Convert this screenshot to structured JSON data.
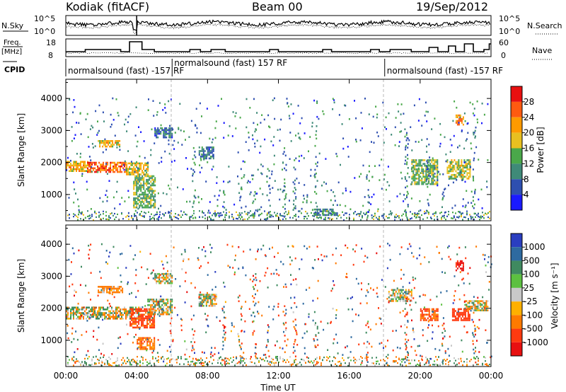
{
  "header": {
    "title": "Kodiak (fitACF)",
    "beam": "Beam 00",
    "date": "19/Sep/2012"
  },
  "noise_panel": {
    "left_label": "N.Sky",
    "right_label": "N.Search",
    "left_ticks": [
      "10^5",
      "10^0"
    ],
    "right_ticks": [
      "10^5",
      "10^0"
    ]
  },
  "freq_panel": {
    "left_label_line1": "Freq.",
    "left_label_line2": "[MHz]",
    "right_label": "Nave",
    "left_ticks": [
      "18",
      "8"
    ],
    "right_ticks": [
      "60",
      "0"
    ]
  },
  "cpid": {
    "label": "CPID",
    "segments": [
      {
        "text": "normalsound (fast) -157 RF",
        "start_hour": 0,
        "end_hour": 6
      },
      {
        "text": "normalsound (fast) 157 RF",
        "start_hour": 6,
        "end_hour": 18
      },
      {
        "text": "normalsound (fast) -157 RF",
        "start_hour": 18,
        "end_hour": 24
      }
    ]
  },
  "axes": {
    "ylabel": "Slant Range [km]",
    "yticks": [
      "1000",
      "2000",
      "3000",
      "4000"
    ],
    "xlabel": "Time UT",
    "xticks": [
      "00:00",
      "04:00",
      "08:00",
      "12:00",
      "16:00",
      "20:00",
      "00:00"
    ]
  },
  "power_colorbar": {
    "label": "Power [dB]",
    "ticks": [
      "4",
      "8",
      "12",
      "16",
      "20",
      "24",
      "28"
    ],
    "colors": [
      "#1a1aff",
      "#2e4fb0",
      "#3f8a78",
      "#4aa84a",
      "#e8c020",
      "#ff9a00",
      "#ff5a10",
      "#e81010"
    ]
  },
  "velocity_colorbar": {
    "label": "Velocity [m s⁻¹]",
    "ticks": [
      "1000",
      "500",
      "100",
      "25",
      "-25",
      "-100",
      "-500",
      "-1000"
    ],
    "colors": [
      "#2a3ec0",
      "#2e6aa0",
      "#3f8a60",
      "#5cc040",
      "#c8c8c8",
      "#ffb000",
      "#ff7a00",
      "#ff3a10",
      "#e81010"
    ]
  },
  "chart_data": [
    {
      "type": "heatmap",
      "title": "Power",
      "xlabel": "Time UT",
      "ylabel": "Slant Range [km]",
      "xlim": [
        0,
        24
      ],
      "ylim": [
        180,
        4600
      ],
      "colorbar_label": "Power [dB]",
      "colorbar_range": [
        0,
        32
      ],
      "blobs": [
        {
          "t": [
            0.0,
            1.2
          ],
          "r": [
            1750,
            2050
          ],
          "level": 20
        },
        {
          "t": [
            1.2,
            3.4
          ],
          "r": [
            1720,
            2020
          ],
          "level": 26
        },
        {
          "t": [
            3.4,
            4.6
          ],
          "r": [
            1650,
            2000
          ],
          "level": 18
        },
        {
          "t": [
            3.8,
            5.0
          ],
          "r": [
            600,
            1600
          ],
          "level": 14
        },
        {
          "t": [
            1.8,
            3.0
          ],
          "r": [
            2500,
            2700
          ],
          "level": 20
        },
        {
          "t": [
            5.0,
            6.0
          ],
          "r": [
            2800,
            3100
          ],
          "level": 8
        },
        {
          "t": [
            7.5,
            8.3
          ],
          "r": [
            2100,
            2500
          ],
          "level": 8
        },
        {
          "t": [
            14.0,
            15.3
          ],
          "r": [
            380,
            560
          ],
          "level": 9
        },
        {
          "t": [
            19.5,
            21.0
          ],
          "r": [
            1300,
            2100
          ],
          "level": 14
        },
        {
          "t": [
            21.5,
            22.8
          ],
          "r": [
            1500,
            2100
          ],
          "level": 16
        },
        {
          "t": [
            22.0,
            22.4
          ],
          "r": [
            3200,
            3500
          ],
          "level": 22
        }
      ]
    },
    {
      "type": "heatmap",
      "title": "Velocity",
      "xlabel": "Time UT",
      "ylabel": "Slant Range [km]",
      "xlim": [
        0,
        24
      ],
      "ylim": [
        180,
        4600
      ],
      "colorbar_label": "Velocity [m s⁻¹]",
      "colorbar_range": [
        -1000,
        1000
      ],
      "blobs": [
        {
          "t": [
            0.0,
            4.2
          ],
          "r": [
            1700,
            2050
          ],
          "level": 0
        },
        {
          "t": [
            1.8,
            3.2
          ],
          "r": [
            2500,
            2700
          ],
          "level": -150
        },
        {
          "t": [
            3.6,
            5.0
          ],
          "r": [
            1400,
            2000
          ],
          "level": -400
        },
        {
          "t": [
            4.0,
            5.0
          ],
          "r": [
            700,
            1100
          ],
          "level": -200
        },
        {
          "t": [
            4.6,
            6.0
          ],
          "r": [
            1800,
            2300
          ],
          "level": 0
        },
        {
          "t": [
            5.0,
            6.0
          ],
          "r": [
            2800,
            3100
          ],
          "level": 0
        },
        {
          "t": [
            7.5,
            8.5
          ],
          "r": [
            2100,
            2450
          ],
          "level": 0
        },
        {
          "t": [
            18.2,
            19.5
          ],
          "r": [
            2200,
            2600
          ],
          "level": 0
        },
        {
          "t": [
            20.0,
            21.0
          ],
          "r": [
            1600,
            2000
          ],
          "level": -300
        },
        {
          "t": [
            21.8,
            22.8
          ],
          "r": [
            1600,
            2000
          ],
          "level": -600
        },
        {
          "t": [
            22.0,
            22.4
          ],
          "r": [
            3200,
            3500
          ],
          "level": -800
        },
        {
          "t": [
            22.5,
            23.8
          ],
          "r": [
            1950,
            2250
          ],
          "level": 0
        }
      ]
    }
  ]
}
